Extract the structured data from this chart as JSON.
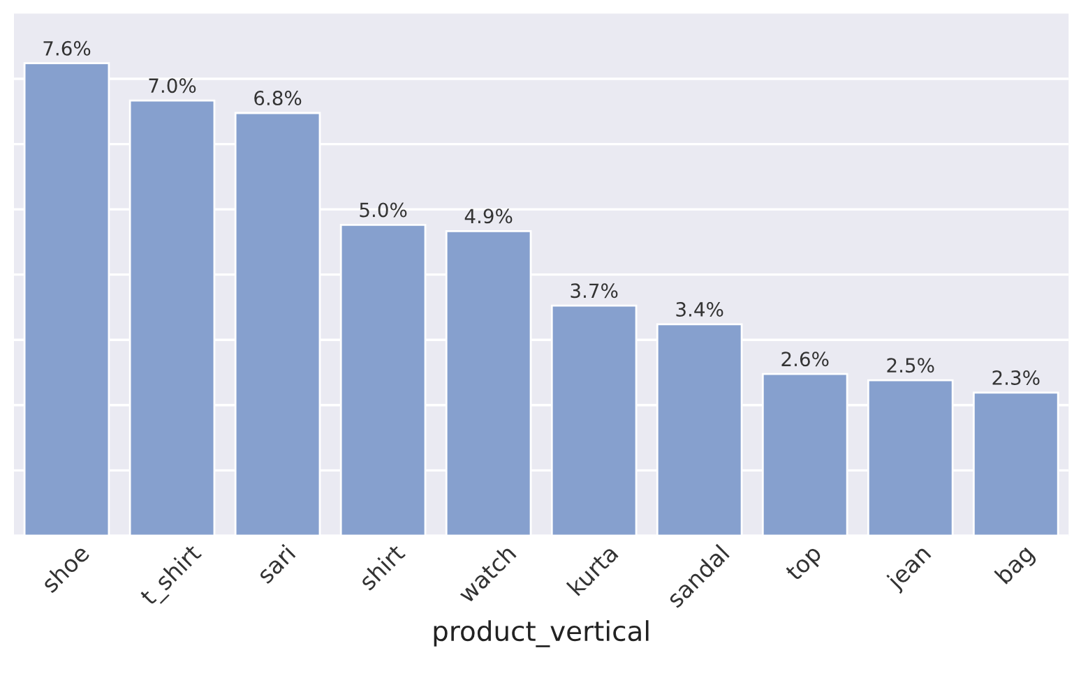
{
  "chart_data": {
    "type": "bar",
    "xlabel": "product_vertical",
    "categories": [
      "shoe",
      "t_shirt",
      "sari",
      "shirt",
      "watch",
      "kurta",
      "sandal",
      "top",
      "jean",
      "bag"
    ],
    "values": [
      7.6,
      7.0,
      6.8,
      5.0,
      4.9,
      3.7,
      3.4,
      2.6,
      2.5,
      2.3
    ],
    "value_labels": [
      "7.6%",
      "7.0%",
      "6.8%",
      "5.0%",
      "4.9%",
      "3.7%",
      "3.4%",
      "2.6%",
      "2.5%",
      "2.3%"
    ],
    "color": "#86a0ce",
    "ylim": [
      0,
      8.4
    ],
    "yticks": [
      {
        "value": 0,
        "label": null
      },
      {
        "value": 1.05,
        "label": null
      },
      {
        "value": 2.1,
        "label": null
      },
      {
        "value": 3.15,
        "label": null
      },
      {
        "value": 4.2,
        "label": null
      },
      {
        "value": 5.25,
        "label": null
      },
      {
        "value": 6.3,
        "label": null
      },
      {
        "value": 7.35,
        "label": null
      }
    ],
    "grid": "y",
    "tick_labels": "x"
  }
}
